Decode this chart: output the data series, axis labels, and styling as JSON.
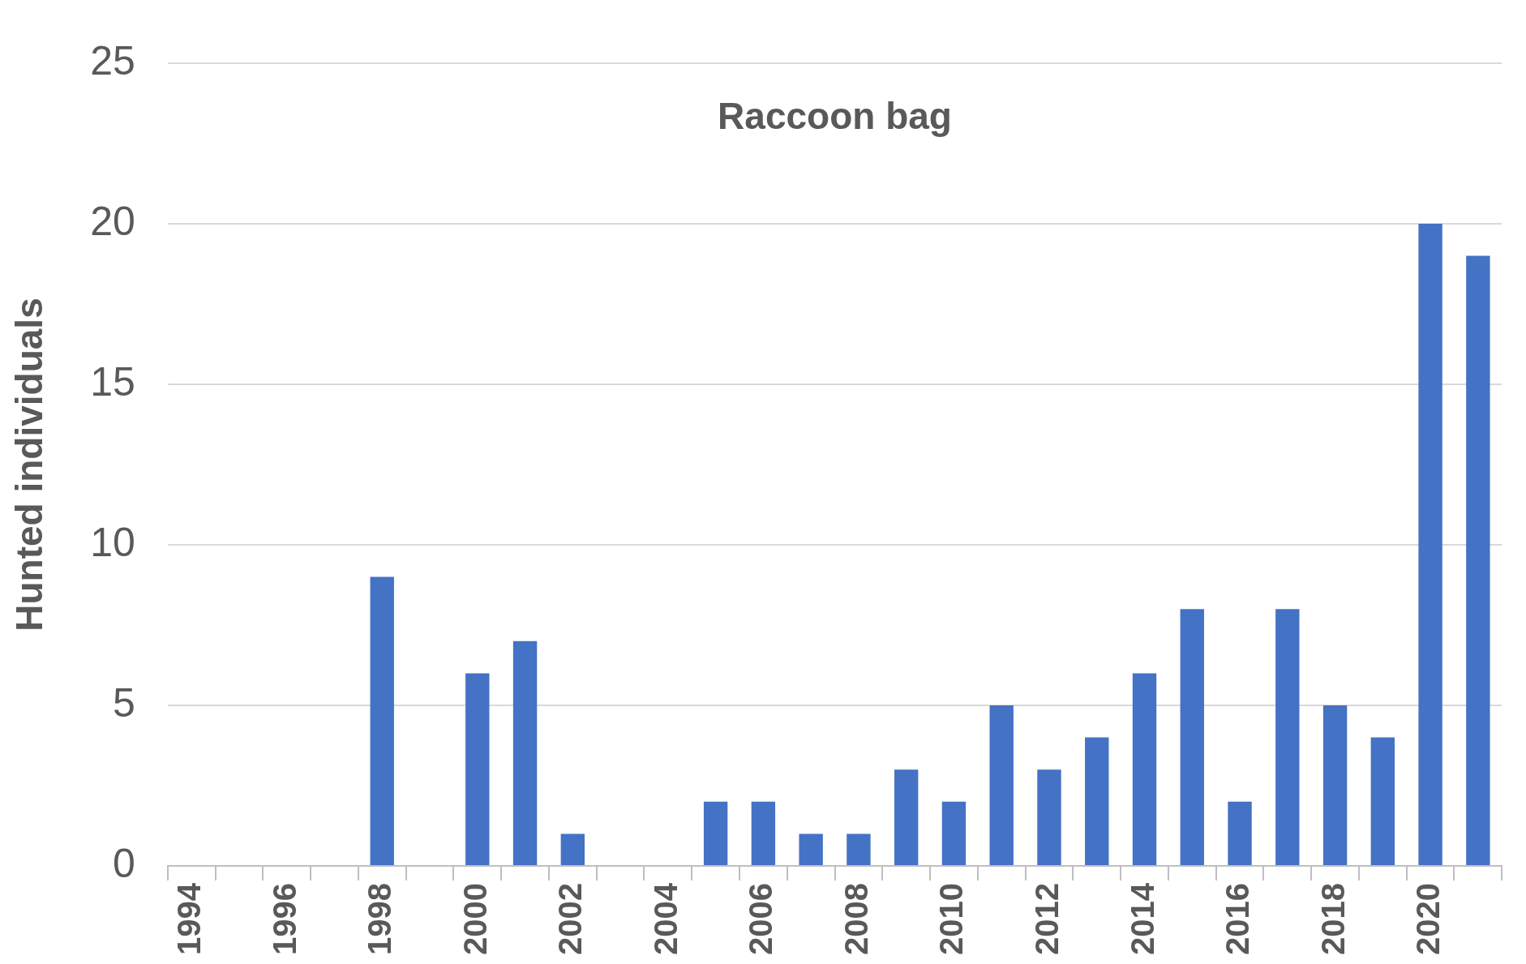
{
  "chart_data": {
    "type": "bar",
    "title": "Raccoon bag",
    "ylabel": "Hunted individuals",
    "categories": [
      "1994",
      null,
      "1996",
      null,
      "1998",
      null,
      "2000",
      null,
      "2002",
      null,
      "2004",
      null,
      "2006",
      null,
      "2008",
      null,
      "2010",
      null,
      "2012",
      null,
      "2014",
      null,
      "2016",
      null,
      "2018",
      null,
      "2020",
      null
    ],
    "values": [
      0,
      0,
      0,
      0,
      9,
      0,
      6,
      7,
      1,
      0,
      0,
      2,
      2,
      1,
      1,
      3,
      2,
      5,
      3,
      4,
      6,
      8,
      2,
      8,
      5,
      4,
      20,
      19
    ],
    "color": "#4472c4",
    "ylim": [
      0,
      25
    ],
    "yticks": [
      0,
      5,
      10,
      15,
      20,
      25
    ],
    "grid": "y",
    "legend": false
  }
}
